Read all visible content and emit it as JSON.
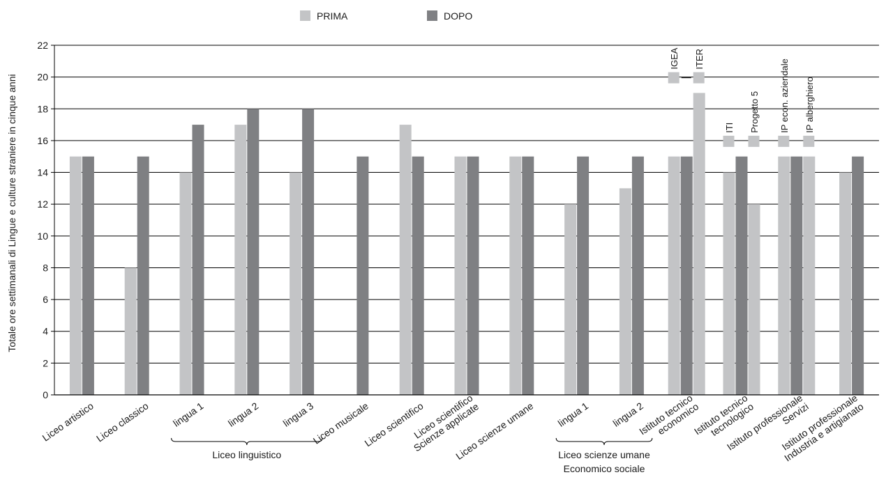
{
  "chart_data": {
    "type": "bar",
    "title": "",
    "ylabel": "Totale ore settimanali di Lingue e culture straniere in cinque anni",
    "xlabel": "",
    "ylim": [
      0,
      22
    ],
    "y_ticks": [
      "0",
      "2",
      "4",
      "6",
      "8",
      "10",
      "12",
      "14",
      "16",
      "18",
      "20",
      "22"
    ],
    "grid": true,
    "legend": {
      "position": "top-center",
      "entries": [
        "PRIMA",
        "DOPO"
      ]
    },
    "colors": {
      "PRIMA": "#c3c4c6",
      "DOPO": "#7f8083",
      "grid": "#000000"
    },
    "categories": [
      "Liceo artistico",
      "Liceo classico",
      "lingua 1",
      "lingua 2",
      "lingua 3",
      "Liceo musicale",
      "Liceo scientifico",
      "Liceo scientifico\nScienze applicate",
      "Liceo scienze umane",
      "lingua 1",
      "lingua 2",
      "Istituto tecnico\neconomico",
      "Istituto tecnico\ntecnologico",
      "Istituto professionale\nServizi",
      "Istituto professionale\nIndustria e artigianato"
    ],
    "category_lines": [
      [
        "Liceo artistico"
      ],
      [
        "Liceo classico"
      ],
      [
        "lingua 1"
      ],
      [
        "lingua 2"
      ],
      [
        "lingua 3"
      ],
      [
        "Liceo musicale"
      ],
      [
        "Liceo scientifico"
      ],
      [
        "Liceo scientifico",
        "Scienze applicate"
      ],
      [
        "Liceo scienze umane"
      ],
      [
        "lingua 1"
      ],
      [
        "lingua 2"
      ],
      [
        "Istituto tecnico",
        "economico"
      ],
      [
        "Istituto tecnico",
        "tecnologico"
      ],
      [
        "Istituto professionale",
        "Servizi"
      ],
      [
        "Istituto professionale",
        "Industria e artigianato"
      ]
    ],
    "groups": [
      {
        "label": "Liceo linguistico",
        "lines": [
          "Liceo linguistico"
        ],
        "from": 2,
        "to": 4
      },
      {
        "label": "Liceo scienze umane Economico sociale",
        "lines": [
          "Liceo scienze umane",
          "Economico sociale"
        ],
        "from": 9,
        "to": 10
      }
    ],
    "bars": [
      {
        "category": 0,
        "series": "PRIMA",
        "value": 15
      },
      {
        "category": 0,
        "series": "DOPO",
        "value": 15
      },
      {
        "category": 1,
        "series": "PRIMA",
        "value": 8
      },
      {
        "category": 1,
        "series": "DOPO",
        "value": 15
      },
      {
        "category": 2,
        "series": "PRIMA",
        "value": 14
      },
      {
        "category": 2,
        "series": "DOPO",
        "value": 17
      },
      {
        "category": 3,
        "series": "PRIMA",
        "value": 17
      },
      {
        "category": 3,
        "series": "DOPO",
        "value": 18
      },
      {
        "category": 4,
        "series": "PRIMA",
        "value": 14
      },
      {
        "category": 4,
        "series": "DOPO",
        "value": 18
      },
      {
        "category": 5,
        "series": "DOPO",
        "value": 15
      },
      {
        "category": 6,
        "series": "PRIMA",
        "value": 17
      },
      {
        "category": 6,
        "series": "DOPO",
        "value": 15
      },
      {
        "category": 7,
        "series": "PRIMA",
        "value": 15
      },
      {
        "category": 7,
        "series": "DOPO",
        "value": 15
      },
      {
        "category": 8,
        "series": "PRIMA",
        "value": 15
      },
      {
        "category": 8,
        "series": "DOPO",
        "value": 15
      },
      {
        "category": 9,
        "series": "PRIMA",
        "value": 12
      },
      {
        "category": 9,
        "series": "DOPO",
        "value": 15
      },
      {
        "category": 10,
        "series": "PRIMA",
        "value": 13
      },
      {
        "category": 10,
        "series": "DOPO",
        "value": 15
      },
      {
        "category": 11,
        "series": "PRIMA",
        "value": 15,
        "variant": "IGEA"
      },
      {
        "category": 11,
        "series": "DOPO",
        "value": 15
      },
      {
        "category": 11,
        "series": "PRIMA",
        "value": 19,
        "variant": "ITER"
      },
      {
        "category": 12,
        "series": "PRIMA",
        "value": 14,
        "variant": "ITI"
      },
      {
        "category": 12,
        "series": "DOPO",
        "value": 15
      },
      {
        "category": 12,
        "series": "PRIMA",
        "value": 12,
        "variant": "Progetto 5"
      },
      {
        "category": 13,
        "series": "PRIMA",
        "value": 15,
        "variant": "IP econ. aziendale"
      },
      {
        "category": 13,
        "series": "DOPO",
        "value": 15
      },
      {
        "category": 13,
        "series": "PRIMA",
        "value": 15,
        "variant": "IP alberghiero"
      },
      {
        "category": 14,
        "series": "PRIMA",
        "value": 14
      },
      {
        "category": 14,
        "series": "DOPO",
        "value": 15
      }
    ],
    "annotations": [
      {
        "text": "IGEA",
        "category": 11,
        "value": 20
      },
      {
        "text": "ITER",
        "category": 11,
        "value": 20
      },
      {
        "text": "ITI",
        "category": 12,
        "value": 16
      },
      {
        "text": "Progetto 5",
        "category": 12,
        "value": 16
      },
      {
        "text": "IP econ. aziendale",
        "category": 13,
        "value": 16
      },
      {
        "text": "IP alberghiero",
        "category": 13,
        "value": 16
      }
    ]
  }
}
